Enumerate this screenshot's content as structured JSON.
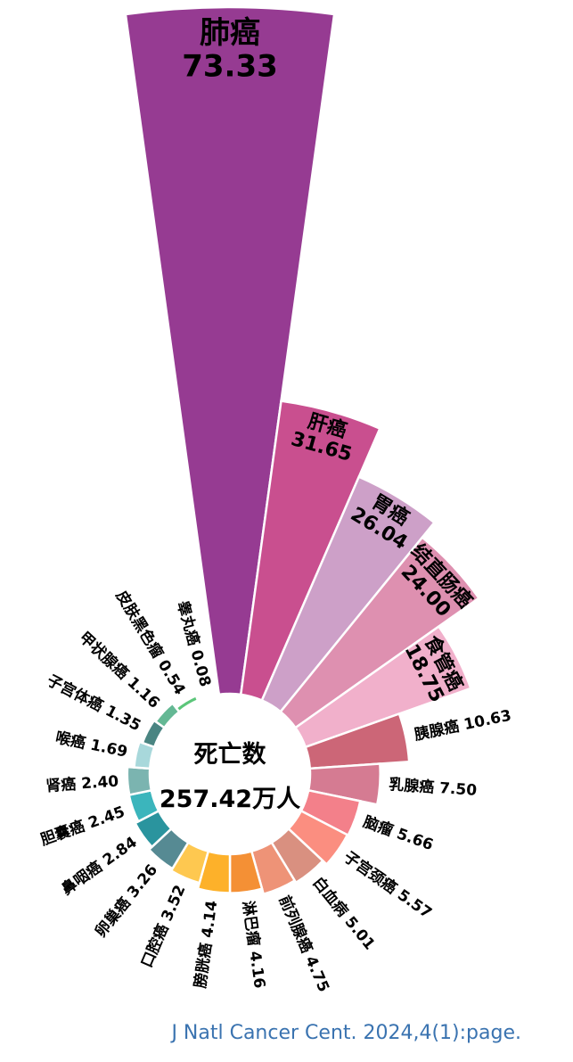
{
  "chart_data": {
    "type": "rose",
    "center_title": "死亡数",
    "center_value": "257.42万人",
    "unit": "万人",
    "categories": [
      "肺癌",
      "肝癌",
      "胃癌",
      "结直肠癌",
      "食管癌",
      "胰腺癌",
      "乳腺癌",
      "脑瘤",
      "子宫颈癌",
      "白血病",
      "前列腺癌",
      "淋巴瘤",
      "膀胱癌",
      "口腔癌",
      "卵巢癌",
      "鼻咽癌",
      "胆囊癌",
      "肾癌",
      "喉癌",
      "子宫体癌",
      "甲状腺癌",
      "皮肤黑色瘤",
      "睾丸癌"
    ],
    "values": [
      73.33,
      31.65,
      26.04,
      24.0,
      18.75,
      10.63,
      7.5,
      5.66,
      5.57,
      5.01,
      4.75,
      4.16,
      4.14,
      3.52,
      3.26,
      2.84,
      2.45,
      2.4,
      1.69,
      1.35,
      1.16,
      0.54,
      0.08
    ],
    "labels": [
      "73.33",
      "31.65",
      "26.04",
      "24.00",
      "18.75",
      "10.63",
      "7.50",
      "5.66",
      "5.57",
      "5.01",
      "4.75",
      "4.16",
      "4.14",
      "3.52",
      "3.26",
      "2.84",
      "2.45",
      "2.40",
      "1.69",
      "1.35",
      "1.16",
      "0.54",
      "0.08"
    ],
    "colors": [
      "#963B92",
      "#C94F8F",
      "#CDA0C8",
      "#DE90B0",
      "#F1B0CB",
      "#CC6677",
      "#D57B92",
      "#F3808A",
      "#FB8E80",
      "#D99080",
      "#EE9377",
      "#F49035",
      "#FDB12A",
      "#FEC850",
      "#568A93",
      "#2A949E",
      "#3BB5BC",
      "#7BB4B0",
      "#A8D8DB",
      "#4A8582",
      "#64B894",
      "#5CC67A",
      "#8ED08A"
    ]
  },
  "source": "J Natl Cancer Cent. 2024,4(1):page."
}
